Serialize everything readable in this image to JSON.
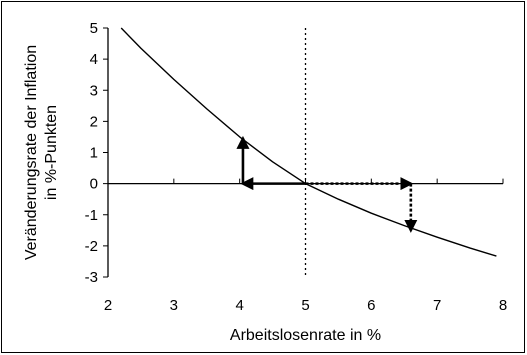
{
  "chart_data": {
    "type": "line",
    "xlabel": "Arbeitslosenrate in %",
    "ylabel_lines": [
      "Veränderungsrate der Inflation",
      "in %-Punkten"
    ],
    "xlim": [
      2,
      8
    ],
    "ylim": [
      -3,
      5
    ],
    "x_ticks": [
      2,
      3,
      4,
      5,
      6,
      7,
      8
    ],
    "y_ticks": [
      5,
      4,
      3,
      2,
      1,
      0,
      -1,
      -2,
      -3
    ],
    "series": [
      {
        "x": [
          2.2,
          2.5,
          3.0,
          3.5,
          4.0,
          4.5,
          5.0,
          5.5,
          6.0,
          6.5,
          7.0,
          7.5,
          7.9
        ],
        "y": [
          5.0,
          4.35,
          3.35,
          2.4,
          1.5,
          0.7,
          0.0,
          -0.5,
          -0.95,
          -1.35,
          -1.72,
          -2.07,
          -2.33
        ],
        "color": "#000000"
      }
    ],
    "reference_line": {
      "orientation": "vertical",
      "x": 5,
      "style": "dotted"
    },
    "arrows": [
      {
        "from": [
          5,
          0
        ],
        "to": [
          4.05,
          0
        ],
        "style": "solid"
      },
      {
        "from": [
          4.05,
          0
        ],
        "to": [
          4.05,
          1.45
        ],
        "style": "solid"
      },
      {
        "from": [
          5,
          0
        ],
        "to": [
          6.6,
          0
        ],
        "style": "dotted"
      },
      {
        "from": [
          6.6,
          0
        ],
        "to": [
          6.6,
          -1.5
        ],
        "style": "dotted"
      }
    ],
    "grid": false
  }
}
